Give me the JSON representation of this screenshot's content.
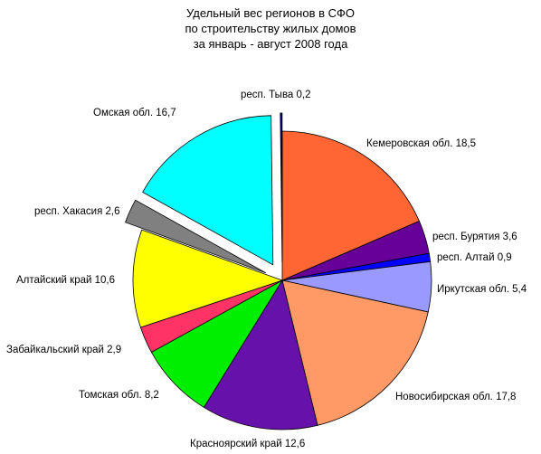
{
  "chart_data": {
    "type": "pie",
    "title_lines": [
      "Удельный вес регионов в СФО",
      "по строительству жилых домов",
      "за январь - август  2008 года"
    ],
    "slices": [
      {
        "label": "Кемеровская обл. 18,5",
        "value": 18.5,
        "color": "#ff6633",
        "exploded": false
      },
      {
        "label": "респ. Бурятия 3,6",
        "value": 3.6,
        "color": "#660099",
        "exploded": false
      },
      {
        "label": "респ. Алтай 0,9",
        "value": 0.9,
        "color": "#0000ff",
        "exploded": false
      },
      {
        "label": "Иркутская обл. 5,4",
        "value": 5.4,
        "color": "#9999ff",
        "exploded": false
      },
      {
        "label": "Новосибирская обл. 17,8",
        "value": 17.8,
        "color": "#ff9966",
        "exploded": false
      },
      {
        "label": "Красноярский край  12,6",
        "value": 12.6,
        "color": "#6611aa",
        "exploded": false
      },
      {
        "label": "Томская обл. 8,2",
        "value": 8.2,
        "color": "#00ee00",
        "exploded": false
      },
      {
        "label": "Забайкальский край  2,9",
        "value": 2.9,
        "color": "#ff3366",
        "exploded": false
      },
      {
        "label": "Алтайский край 10,6",
        "value": 10.6,
        "color": "#ffff00",
        "exploded": false
      },
      {
        "label": "респ. Хакасия 2,6",
        "value": 2.6,
        "color": "#808080",
        "exploded": true
      },
      {
        "label": "Омская обл. 16,7",
        "value": 16.7,
        "color": "#00ffff",
        "exploded": true
      },
      {
        "label": "респ. Тыва 0,2",
        "value": 0.2,
        "color": "#000080",
        "exploded": true
      }
    ],
    "legend": "none"
  }
}
